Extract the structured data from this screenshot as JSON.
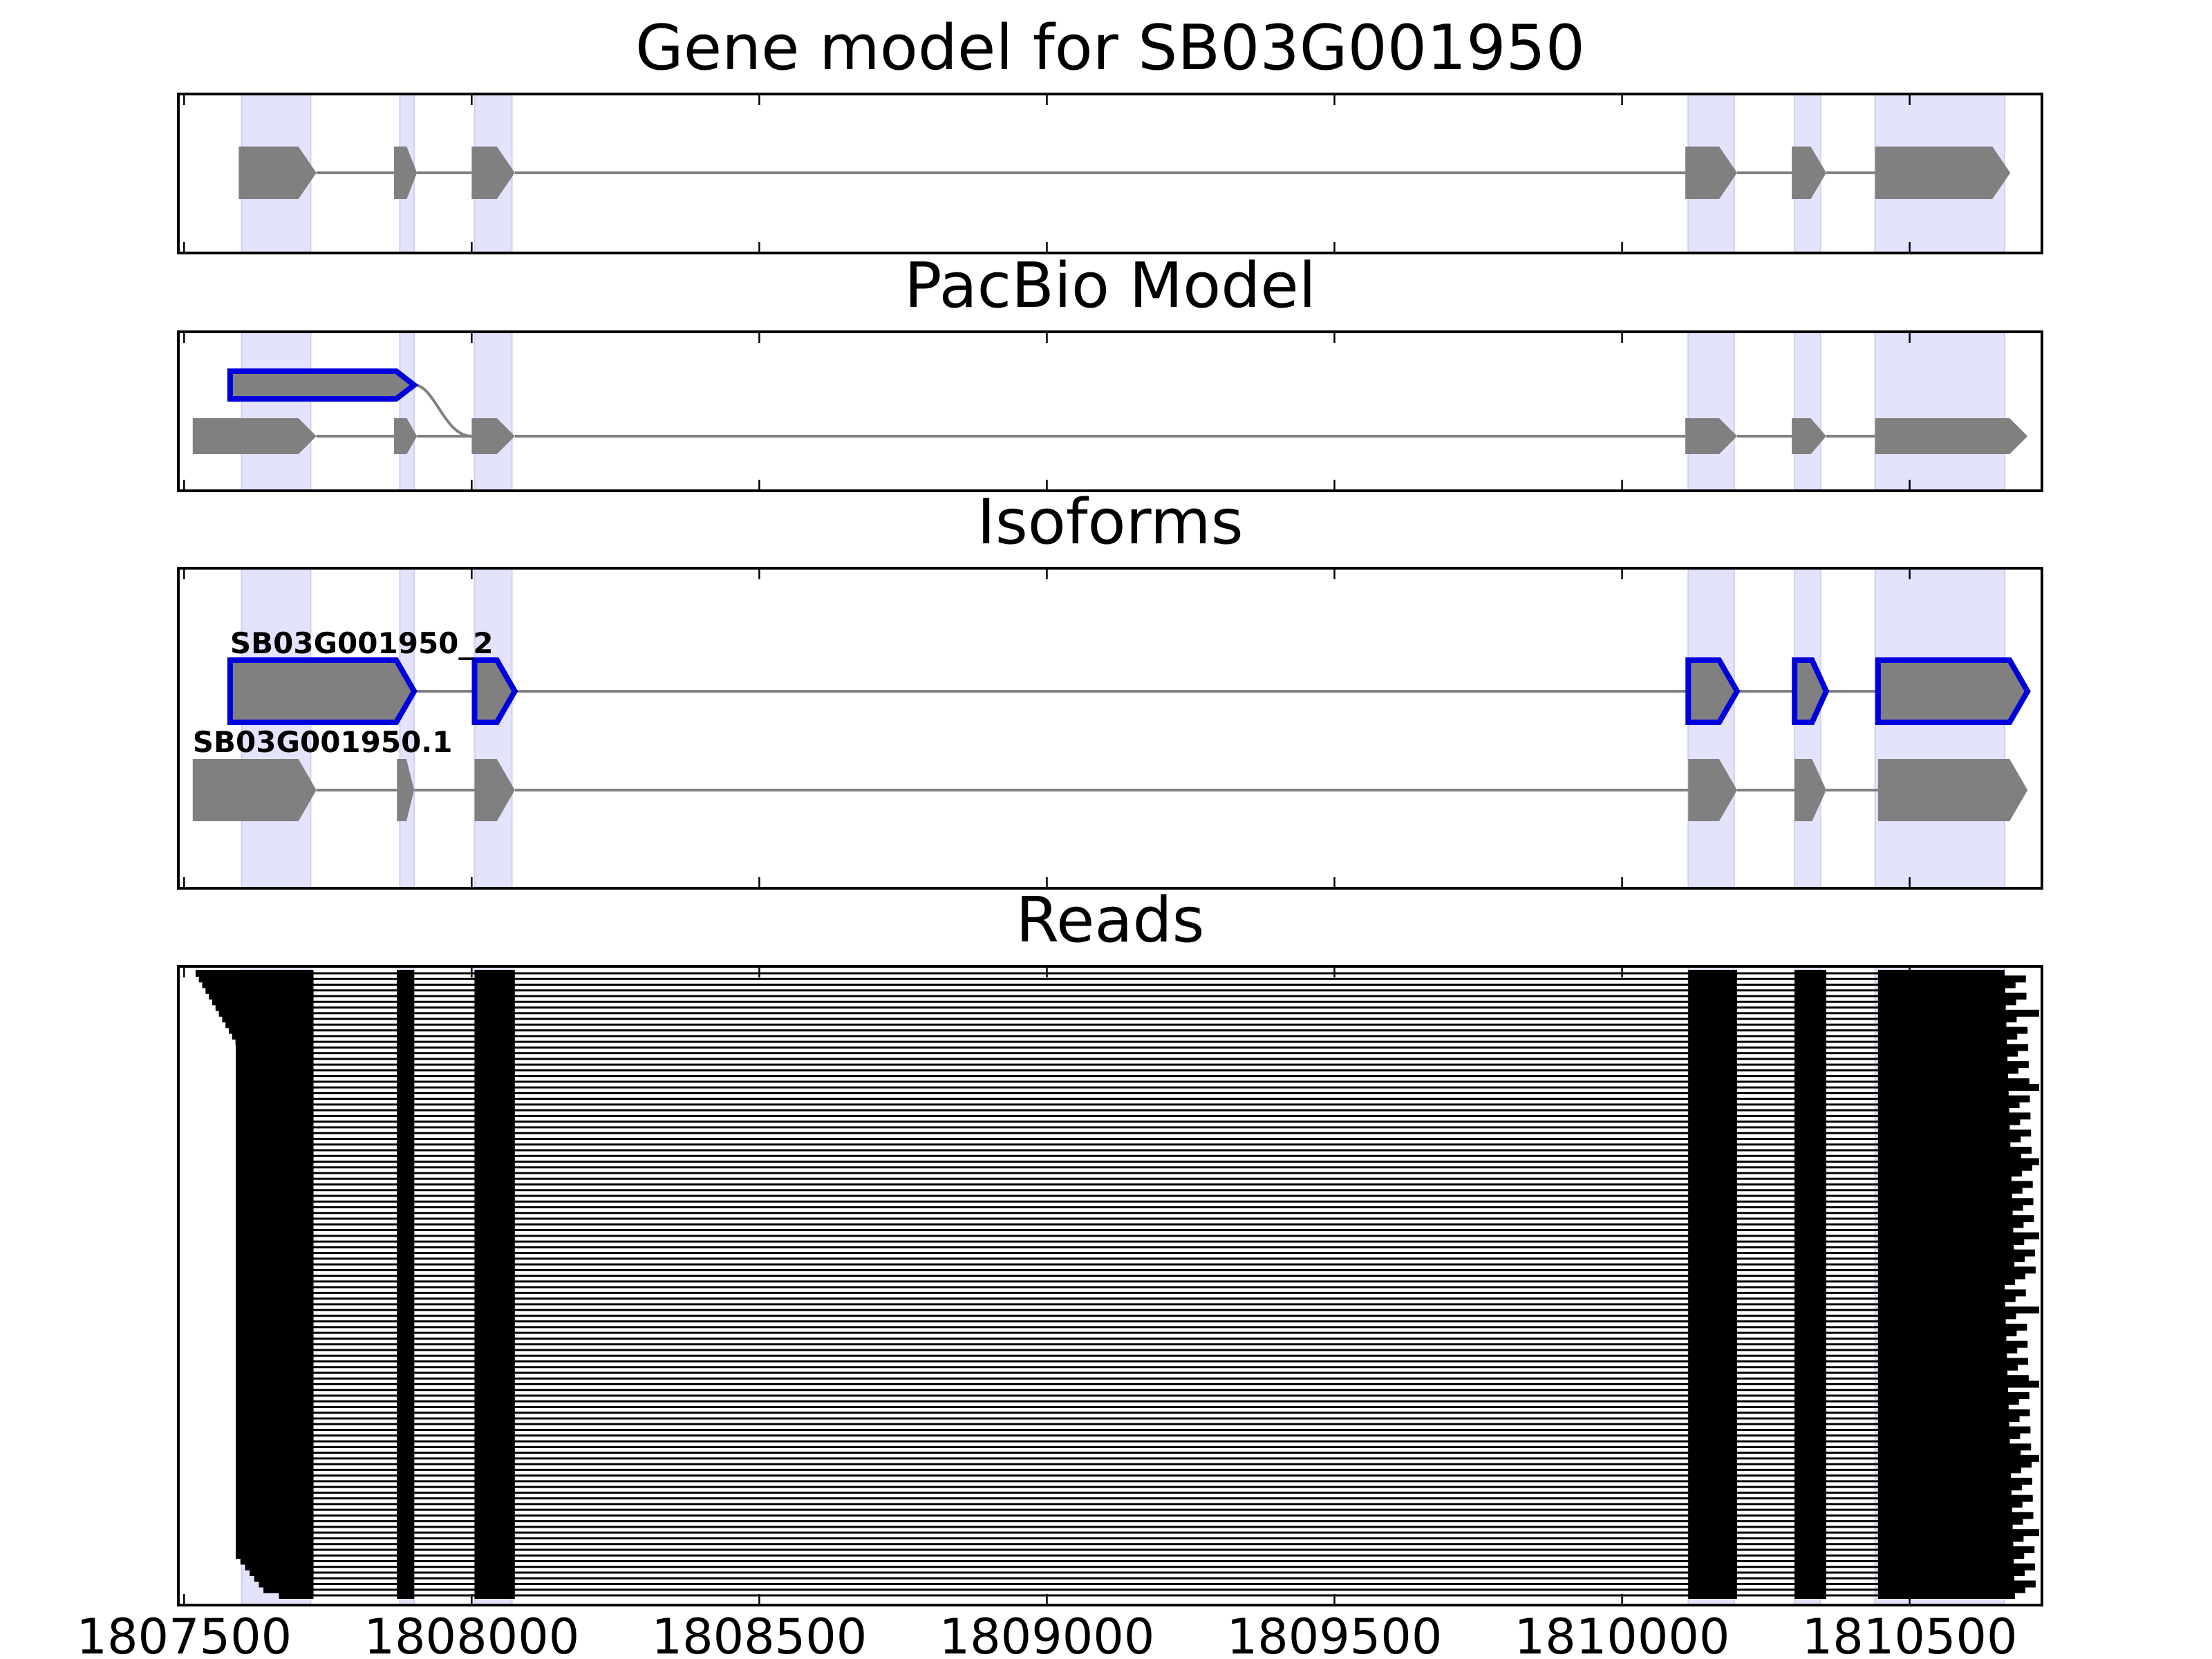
{
  "chart_data": {
    "type": "gene-structure",
    "x_range": [
      1807490,
      1810730
    ],
    "x_ticks": [
      1807500,
      1808000,
      1808500,
      1809000,
      1809500,
      1810000,
      1810500
    ],
    "x_tick_labels": [
      "1807500",
      "1808000",
      "1808500",
      "1809000",
      "1809500",
      "1810000",
      "1810500"
    ],
    "highlight_regions": [
      [
        1807600,
        1807720
      ],
      [
        1807875,
        1807900
      ],
      [
        1808005,
        1808070
      ],
      [
        1810115,
        1810195
      ],
      [
        1810300,
        1810345
      ],
      [
        1810440,
        1810665
      ]
    ],
    "colors": {
      "exon": "#808080",
      "intron": "#808080",
      "highlight": "#e3e3fb",
      "selected_outline": "#0000dd",
      "read": "#000000"
    },
    "panels": [
      {
        "title": "Gene model for SB03G001950",
        "tracks": [
          {
            "name": "",
            "exons": [
              [
                1807595,
                1807730
              ],
              [
                1807865,
                1807905
              ],
              [
                1808000,
                1808075
              ],
              [
                1810110,
                1810200
              ],
              [
                1810295,
                1810355
              ],
              [
                1810440,
                1810675
              ]
            ]
          }
        ]
      },
      {
        "title": "PacBio Model",
        "tracks": [
          {
            "name": "",
            "selected": true,
            "exons": [
              [
                1807580,
                1807900
              ]
            ],
            "splice_to": 1808000
          },
          {
            "name": "",
            "exons": [
              [
                1807515,
                1807730
              ],
              [
                1807865,
                1807905
              ],
              [
                1808000,
                1808075
              ],
              [
                1810110,
                1810200
              ],
              [
                1810295,
                1810355
              ],
              [
                1810440,
                1810705
              ]
            ]
          }
        ]
      },
      {
        "title": "Isoforms",
        "tracks": [
          {
            "name": "SB03G001950_2",
            "selected": true,
            "exons": [
              [
                1807580,
                1807900
              ],
              [
                1808005,
                1808075
              ],
              [
                1810115,
                1810200
              ],
              [
                1810300,
                1810355
              ],
              [
                1810445,
                1810705
              ]
            ]
          },
          {
            "name": "SB03G001950.1",
            "exons": [
              [
                1807515,
                1807730
              ],
              [
                1807870,
                1807900
              ],
              [
                1808005,
                1808075
              ],
              [
                1810115,
                1810200
              ],
              [
                1810300,
                1810355
              ],
              [
                1810445,
                1810705
              ]
            ]
          }
        ]
      },
      {
        "title": "Reads",
        "read_count": 110,
        "read_exon_blocks": [
          [
            1807870,
            1807900
          ],
          [
            1808005,
            1808075
          ],
          [
            1810115,
            1810200
          ],
          [
            1810300,
            1810355
          ]
        ],
        "first_exon_end": 1807725,
        "last_exon_start": 1810445
      }
    ]
  }
}
